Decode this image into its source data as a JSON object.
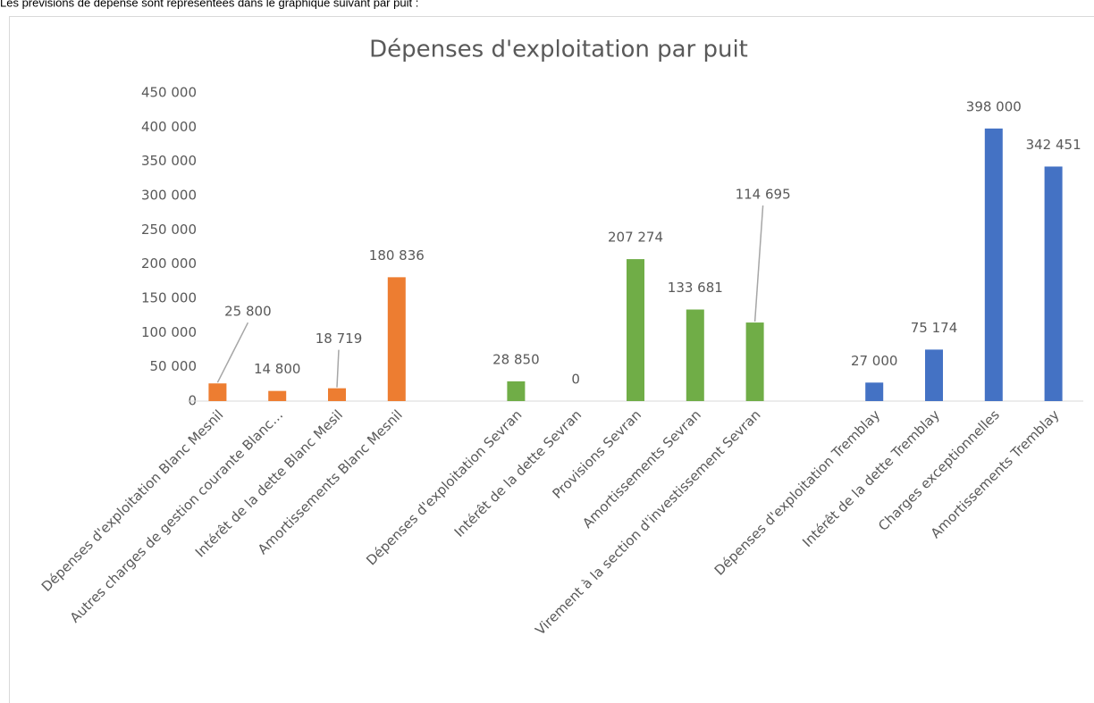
{
  "intro": "Les prévisions de dépense sont représentées dans le graphique suivant par puit :",
  "chart_data": {
    "type": "bar",
    "title": "Dépenses d'exploitation par puit",
    "categories": [
      "Dépenses d'exploitation Blanc Mesnil",
      "Autres charges de gestion courante Blanc…",
      "Intérêt de la dette Blanc Mesil",
      "Amortissements Blanc Mesnil",
      null,
      "Dépenses d'exploitation Sevran",
      "Intérêt de la dette Sevran",
      "Provisions Sevran",
      "Amortissements Sevran",
      "Virement à la section d'investissement Sevran",
      null,
      "Dépenses d'exploitation Tremblay",
      "Intérêt de la dette Tremblay",
      "Charges exceptionnelles",
      "Amortissements Tremblay"
    ],
    "values": [
      25800,
      14800,
      18719,
      180836,
      null,
      28850,
      0,
      207274,
      133681,
      114695,
      null,
      27000,
      75174,
      398000,
      342451
    ],
    "value_labels": [
      "25 800",
      "14 800",
      "18 719",
      "180 836",
      null,
      "28 850",
      "0",
      "207 274",
      "133 681",
      "114 695",
      null,
      "27 000",
      "75 174",
      "398 000",
      "342 451"
    ],
    "colors": [
      "#ed7d31",
      "#ed7d31",
      "#ed7d31",
      "#ed7d31",
      null,
      "#70ad47",
      "#70ad47",
      "#70ad47",
      "#70ad47",
      "#70ad47",
      null,
      "#4472c4",
      "#4472c4",
      "#4472c4",
      "#4472c4"
    ],
    "ylim": [
      0,
      450000
    ],
    "yticks": [
      0,
      {
        "value": 50000,
        "label": "50 000"
      },
      {
        "value": 100000,
        "label": "100 000"
      },
      {
        "value": 150000,
        "label": "150 000"
      },
      {
        "value": 200000,
        "label": "200 000"
      },
      {
        "value": 250000,
        "label": "250 000"
      },
      {
        "value": 300000,
        "label": "300 000"
      },
      {
        "value": 350000,
        "label": "350 000"
      },
      {
        "value": 400000,
        "label": "400 000"
      },
      {
        "value": 450000,
        "label": "450 000"
      }
    ],
    "grid": false
  }
}
